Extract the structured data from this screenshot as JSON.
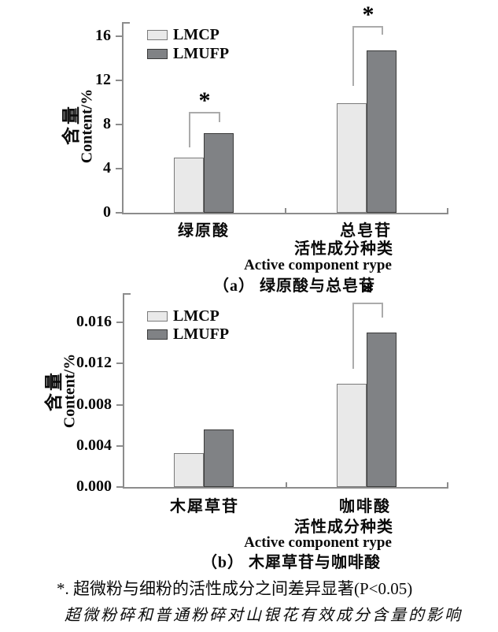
{
  "figure": {
    "footnote": "*. 超微粉与细粉的活性成分之间差异显著(P<0.05)",
    "caption": "超微粉碎和普通粉碎对山银花有效成分含量的影响"
  },
  "chart_data": [
    {
      "panel": "a",
      "type": "bar",
      "categories": [
        "绿原酸",
        "总皂苷"
      ],
      "series": [
        {
          "name": "LMCP",
          "values": [
            5.0,
            9.9
          ],
          "fill": "#e9e9e9",
          "border": "#7a7a7a"
        },
        {
          "name": "LMUFP",
          "values": [
            7.2,
            14.7
          ],
          "fill": "#808285",
          "border": "#3a3a3a"
        }
      ],
      "ylabel_zh": "含量",
      "ylabel_en": "Content/%",
      "xlabel_zh": "活性成分种类",
      "xlabel_en": "Active component rype",
      "panel_caption": "（a） 绿原酸与总皂苷",
      "yticks": [
        {
          "value": 0,
          "label": "0"
        },
        {
          "value": 4,
          "label": "4"
        },
        {
          "value": 8,
          "label": "8"
        },
        {
          "value": 12,
          "label": "12"
        },
        {
          "value": 16,
          "label": "16"
        }
      ],
      "ylim": [
        0,
        17.3
      ],
      "grid": false,
      "legend": [
        "LMCP",
        "LMUFP"
      ],
      "legend_position": "top-left-inside",
      "significance": [
        {
          "category": "绿原酸",
          "label": "*"
        },
        {
          "category": "总皂苷",
          "label": "*"
        }
      ]
    },
    {
      "panel": "b",
      "type": "bar",
      "categories": [
        "木犀草苷",
        "咖啡酸"
      ],
      "series": [
        {
          "name": "LMCP",
          "values": [
            0.0033,
            0.01
          ],
          "fill": "#e9e9e9",
          "border": "#7a7a7a"
        },
        {
          "name": "LMUFP",
          "values": [
            0.0056,
            0.015
          ],
          "fill": "#808285",
          "border": "#3a3a3a"
        }
      ],
      "ylabel_zh": "含量",
      "ylabel_en": "Content/%",
      "xlabel_zh": "活性成分种类",
      "xlabel_en": "Active component rype",
      "panel_caption": "（b） 木犀草苷与咖啡酸",
      "yticks": [
        {
          "value": 0,
          "label": "0.000"
        },
        {
          "value": 0.004,
          "label": "0.004"
        },
        {
          "value": 0.008,
          "label": "0.008"
        },
        {
          "value": 0.012,
          "label": "0.012"
        },
        {
          "value": 0.016,
          "label": "0.016"
        }
      ],
      "ylim": [
        0,
        0.0188
      ],
      "grid": false,
      "legend": [
        "LMCP",
        "LMUFP"
      ],
      "legend_position": "top-left-inside",
      "significance": [
        {
          "category": "咖啡酸",
          "label": "*"
        }
      ]
    }
  ]
}
